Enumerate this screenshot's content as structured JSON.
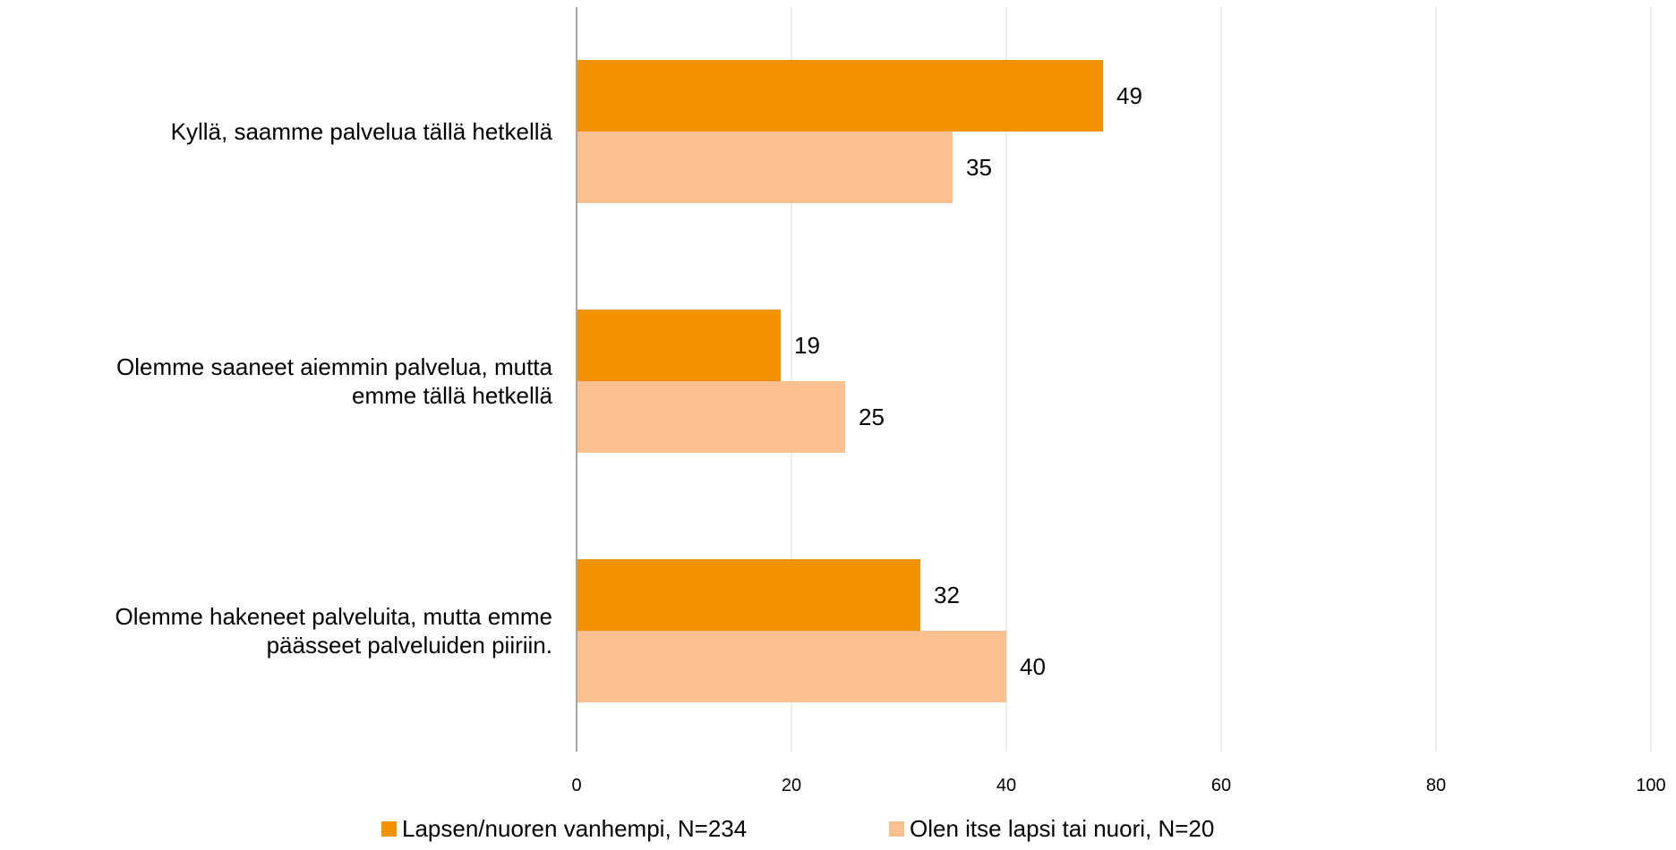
{
  "chart_data": {
    "type": "bar",
    "orientation": "horizontal",
    "categories": [
      [
        "Kyllä, saamme palvelua tällä hetkellä"
      ],
      [
        "Olemme saaneet aiemmin palvelua, mutta",
        "emme tällä hetkellä"
      ],
      [
        "Olemme hakeneet palveluita, mutta emme",
        "päässeet palveluiden piiriin."
      ]
    ],
    "series": [
      {
        "name": "Lapsen/nuoren vanhempi, N=234",
        "color": "#F39200",
        "values": [
          49,
          19,
          32
        ]
      },
      {
        "name": "Olen itse lapsi tai nuori, N=20",
        "color": "#FAC090",
        "values": [
          35,
          25,
          40
        ]
      }
    ],
    "xlim": [
      0,
      100
    ],
    "xticks": [
      0,
      20,
      40,
      60,
      80,
      100
    ],
    "grid": true,
    "legend": "bottom",
    "title": "",
    "xlabel": "",
    "ylabel": ""
  }
}
